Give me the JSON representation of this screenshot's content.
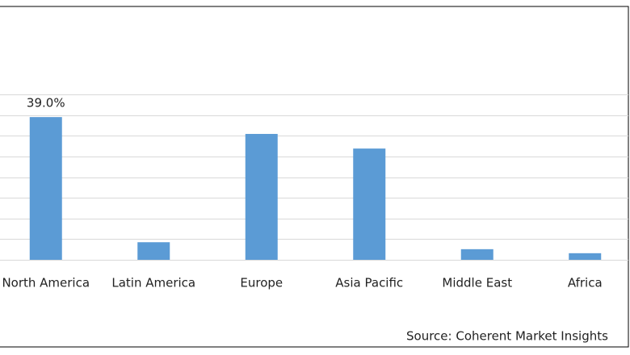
{
  "chart_data": {
    "type": "bar",
    "categories": [
      "North America",
      "Latin America",
      "Europe",
      "Asia Pacific",
      "Middle East",
      "Africa"
    ],
    "values": [
      39.0,
      4.8,
      34.4,
      30.4,
      2.9,
      1.8
    ],
    "value_labels": [
      "39.0%",
      null,
      null,
      null,
      null,
      null
    ],
    "color": "#5b9bd5",
    "ylim": [
      0,
      45.2
    ],
    "yticks": [
      0,
      5.65,
      11.3,
      16.95,
      22.6,
      28.25,
      33.9,
      39.55,
      45.2
    ],
    "grid": true,
    "source": "Source: Coherent Market Insights"
  }
}
